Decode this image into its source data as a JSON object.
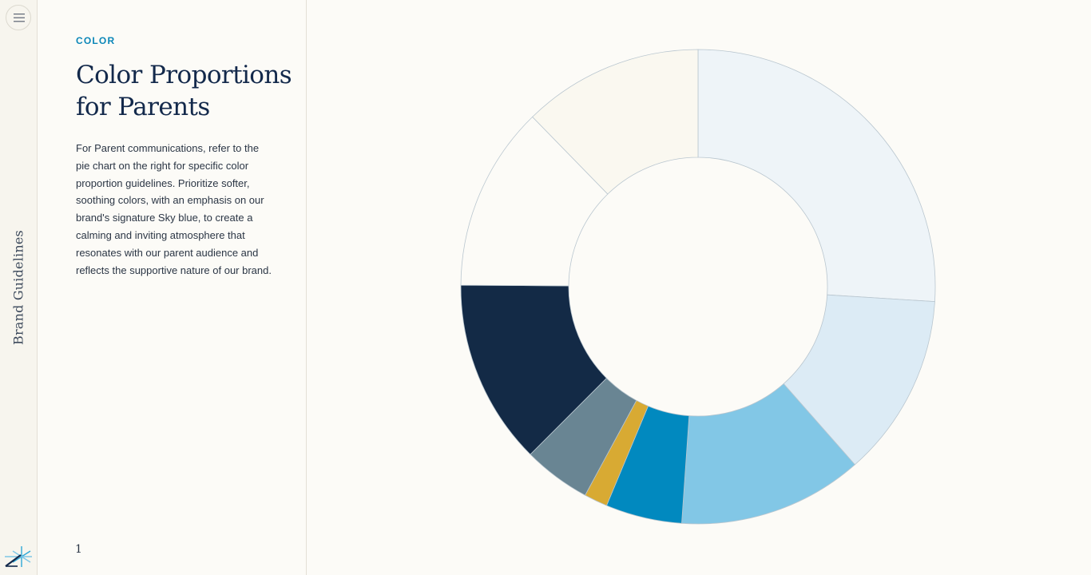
{
  "sidebar": {
    "menu_icon": "hamburger-menu-icon",
    "vertical_title": "Brand Guidelines",
    "logo_icon": "asterisk-logo-icon"
  },
  "panel": {
    "eyebrow": "COLOR",
    "title": "Color Proportions for Parents",
    "body": "For Parent communications, refer to the pie chart on the right for specific color proportion guidelines. Prioritize softer, soothing colors, with an emphasis on our brand's signature Sky blue, to create a calming and inviting atmosphere that resonates with our parent audience and reflects the supportive nature of our brand.",
    "page_number": "1"
  },
  "chart_data": {
    "type": "pie",
    "title": "",
    "donut": true,
    "slices": [
      {
        "value": 26.0,
        "color": "#eef4f8"
      },
      {
        "value": 12.5,
        "color": "#dcebf5"
      },
      {
        "value": 12.6,
        "color": "#82c7e6"
      },
      {
        "value": 5.2,
        "color": "#0189bf"
      },
      {
        "value": 1.6,
        "color": "#d8aa33"
      },
      {
        "value": 4.6,
        "color": "#698593"
      },
      {
        "value": 12.6,
        "color": "#132a46"
      },
      {
        "value": 12.6,
        "color": "#fcfbf7"
      },
      {
        "value": 12.3,
        "color": "#faf8f0"
      }
    ]
  }
}
